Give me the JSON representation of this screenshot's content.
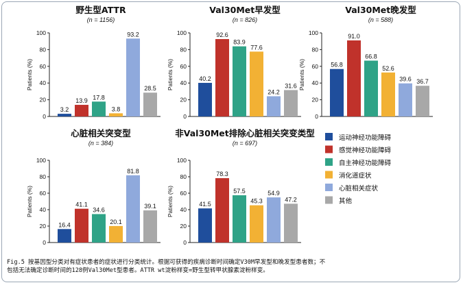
{
  "colors": {
    "motor": "#1f4e9c",
    "sensory": "#c0322b",
    "autonomic": "#2fa387",
    "gi": "#f2b134",
    "cardiac": "#8fa9dc",
    "other": "#a8a8a8"
  },
  "legend": [
    {
      "label": "运动神经功能障碍",
      "color_key": "motor"
    },
    {
      "label": "感觉神经功能障碍",
      "color_key": "sensory"
    },
    {
      "label": "自主神经功能障碍",
      "color_key": "autonomic"
    },
    {
      "label": "消化道症状",
      "color_key": "gi"
    },
    {
      "label": "心脏相关症状",
      "color_key": "cardiac"
    },
    {
      "label": "其他",
      "color_key": "other"
    }
  ],
  "chart_data": [
    {
      "type": "bar",
      "title": "野生型ATTR",
      "subtitle": "(n = 1156)",
      "ylabel": "Patients (%)",
      "ylim": [
        0,
        100
      ],
      "yticks": [
        "0",
        "20",
        "40",
        "60",
        "80",
        "100"
      ],
      "categories": [
        "运动神经功能障碍",
        "感觉神经功能障碍",
        "自主神经功能障碍",
        "消化道症状",
        "心脏相关症状",
        "其他"
      ],
      "values": [
        3.2,
        13.9,
        17.8,
        3.8,
        93.2,
        28.5
      ],
      "value_labels": [
        "3.2",
        "13.9",
        "17.8",
        "3.8",
        "93.2",
        "28.5"
      ]
    },
    {
      "type": "bar",
      "title": "Val30Met早发型",
      "subtitle": "(n = 826)",
      "ylabel": "Patients (%)",
      "ylim": [
        0,
        100
      ],
      "yticks": [
        "0",
        "20",
        "40",
        "60",
        "80",
        "100"
      ],
      "categories": [
        "运动神经功能障碍",
        "感觉神经功能障碍",
        "自主神经功能障碍",
        "消化道症状",
        "心脏相关症状",
        "其他"
      ],
      "values": [
        40.2,
        92.6,
        83.9,
        77.6,
        24.2,
        31.6
      ],
      "value_labels": [
        "40.2",
        "92.6",
        "83.9",
        "77.6",
        "24.2",
        "31.6"
      ]
    },
    {
      "type": "bar",
      "title": "Val30Met晚发型",
      "subtitle": "(n = 588)",
      "ylabel": "Patients (%)",
      "ylim": [
        0,
        100
      ],
      "yticks": [
        "0",
        "20",
        "40",
        "60",
        "80",
        "100"
      ],
      "categories": [
        "运动神经功能障碍",
        "感觉神经功能障碍",
        "自主神经功能障碍",
        "消化道症状",
        "心脏相关症状",
        "其他"
      ],
      "values": [
        56.8,
        91.0,
        66.8,
        52.6,
        39.6,
        36.7
      ],
      "value_labels": [
        "56.8",
        "91.0",
        "66.8",
        "52.6",
        "39.6",
        "36.7"
      ]
    },
    {
      "type": "bar",
      "title": "心脏相关突变型",
      "subtitle": "(n = 384)",
      "ylabel": "Patients (%)",
      "ylim": [
        0,
        100
      ],
      "yticks": [
        "0",
        "20",
        "40",
        "60",
        "80",
        "100"
      ],
      "categories": [
        "运动神经功能障碍",
        "感觉神经功能障碍",
        "自主神经功能障碍",
        "消化道症状",
        "心脏相关症状",
        "其他"
      ],
      "values": [
        16.4,
        41.1,
        34.6,
        20.1,
        81.8,
        39.1
      ],
      "value_labels": [
        "16.4",
        "41.1",
        "34.6",
        "20.1",
        "81.8",
        "39.1"
      ]
    },
    {
      "type": "bar",
      "title": "非Val30Met排除心脏相关突变类型",
      "subtitle": "(n = 697)",
      "ylabel": "Patients (%)",
      "ylim": [
        0,
        100
      ],
      "yticks": [
        "0",
        "20",
        "40",
        "60",
        "80",
        "100"
      ],
      "categories": [
        "运动神经功能障碍",
        "感觉神经功能障碍",
        "自主神经功能障碍",
        "消化道症状",
        "心脏相关症状",
        "其他"
      ],
      "values": [
        41.5,
        78.3,
        57.5,
        45.3,
        54.9,
        47.2
      ],
      "value_labels": [
        "41.5",
        "78.3",
        "57.5",
        "45.3",
        "54.9",
        "47.2"
      ]
    }
  ],
  "caption": {
    "line1": "Fig.5 按基因型分类对有症状患者的症状进行分类统计。根据可获得的疾病诊断时间确定V30M早发型和晚发型患者数；不",
    "line2": "包括无法确定诊断时间的128例Val30Met型患者。ATTR wt淀粉样变=野生型转甲状腺素淀粉样变。"
  }
}
